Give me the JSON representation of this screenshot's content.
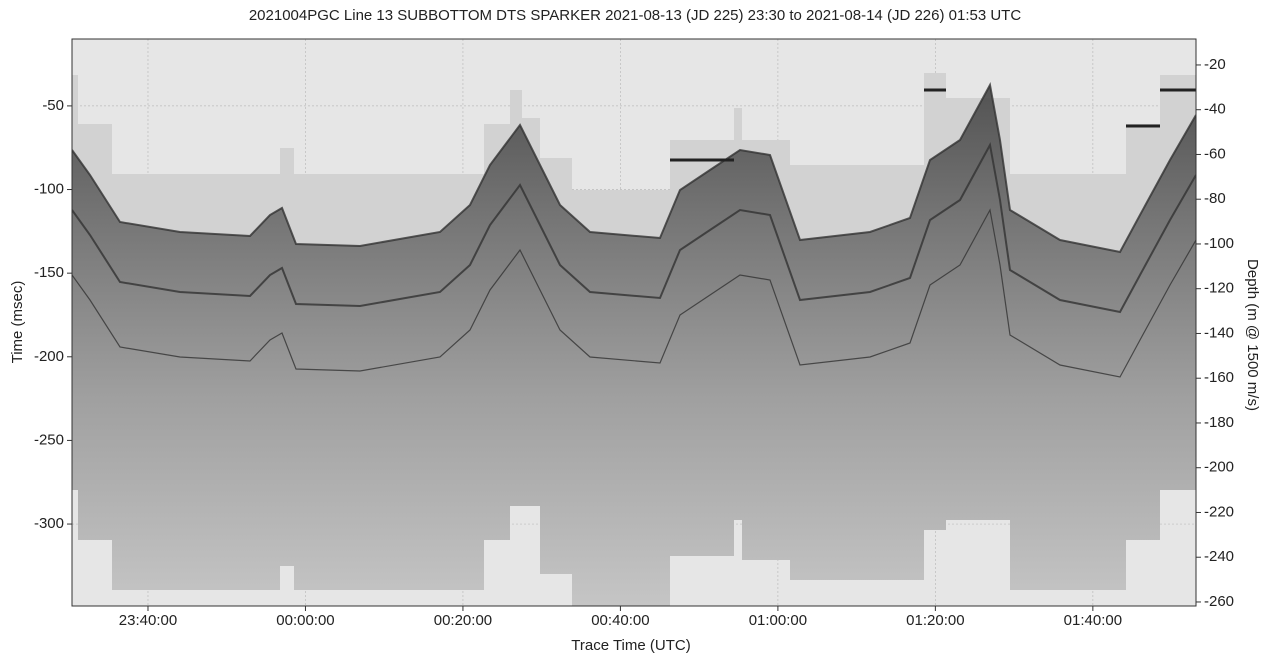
{
  "chart_data": {
    "type": "image",
    "title": "2021004PGC Line 13 SUBBOTTOM DTS SPARKER 2021-08-13 (JD 225) 23:30 to 2021-08-14 (JD 226) 01:53 UTC",
    "x_label": "Trace Time (UTC)",
    "y_label": "Time (msec)",
    "y2_label": "Depth (m @ 1500 m/s)",
    "xlim": [
      -29.65,
      113.1
    ],
    "xticks": [
      {
        "value": -20,
        "label": "23:40:00"
      },
      {
        "value": 0,
        "label": "00:00:00"
      },
      {
        "value": 20,
        "label": "00:20:00"
      },
      {
        "value": 40,
        "label": "00:40:00"
      },
      {
        "value": 60,
        "label": "01:00:00"
      },
      {
        "value": 80,
        "label": "01:20:00"
      },
      {
        "value": 100,
        "label": "01:40:00"
      }
    ],
    "ylim": [
      -10,
      -349
    ],
    "yticks": [
      -50,
      -100,
      -150,
      -200,
      -250,
      -300
    ],
    "y2lim": [
      -8.4,
      -261.8
    ],
    "y2ticks": [
      -20,
      -40,
      -60,
      -80,
      -100,
      -120,
      -140,
      -160,
      -180,
      -200,
      -220,
      -240,
      -260
    ],
    "grid": true
  }
}
